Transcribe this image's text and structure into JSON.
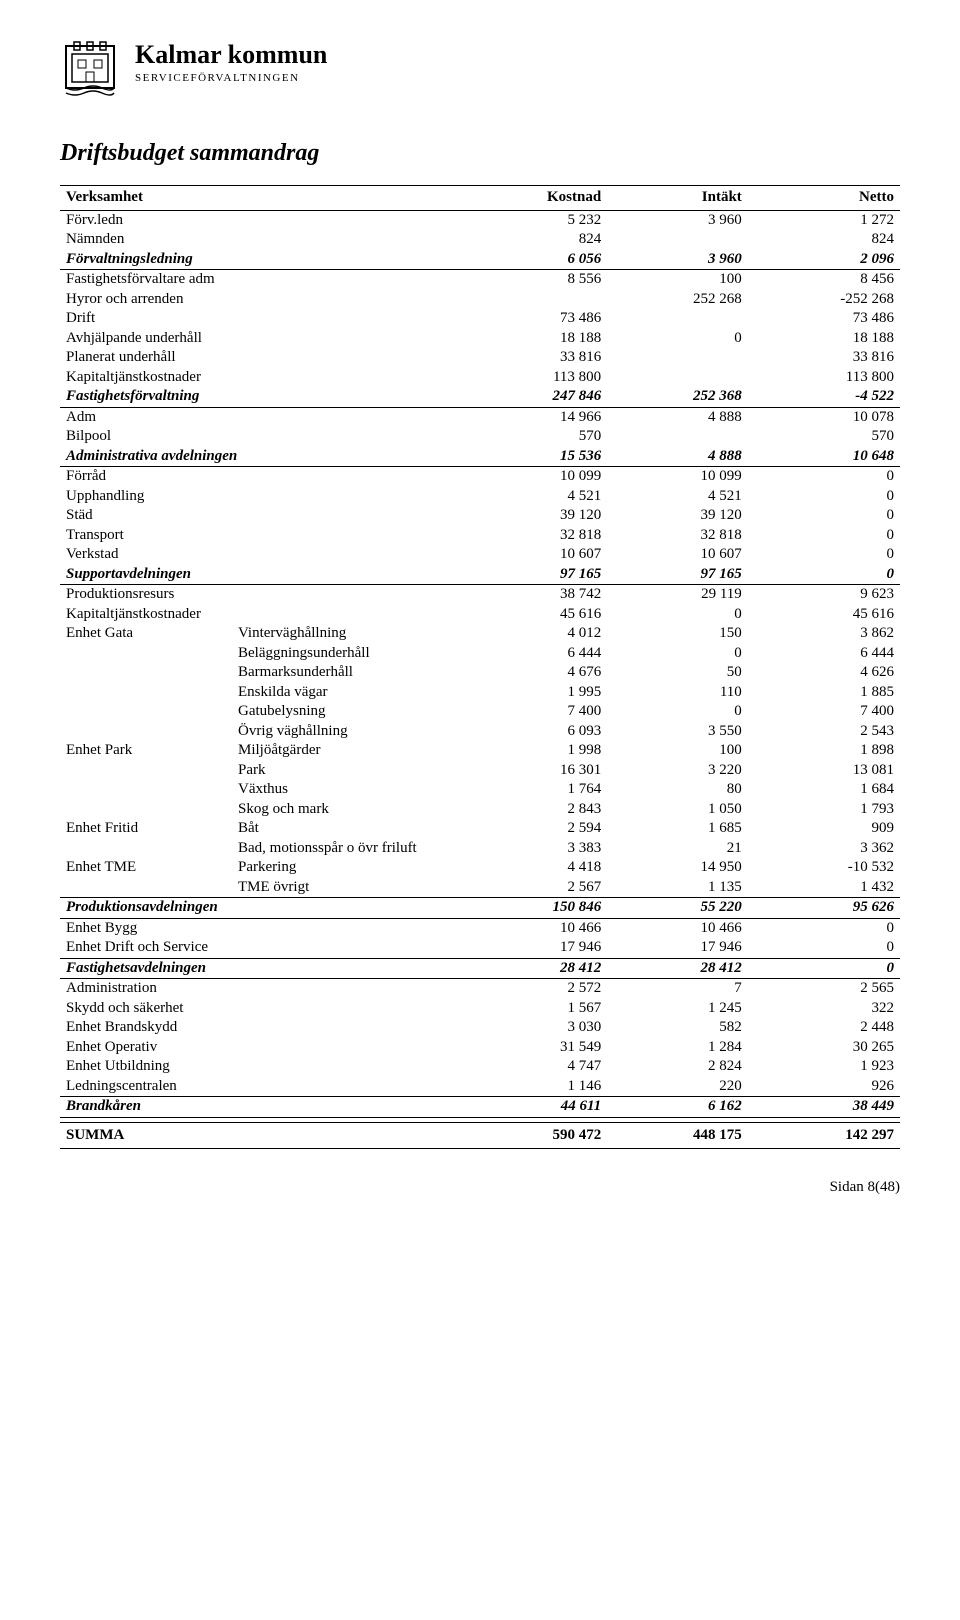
{
  "header": {
    "org": "Kalmar kommun",
    "sub": "SERVICEFÖRVALTNINGEN"
  },
  "title": "Driftsbudget sammandrag",
  "columns": [
    "Verksamhet",
    "Kostnad",
    "Intäkt",
    "Netto"
  ],
  "rows": [
    {
      "l1": "Förv.ledn",
      "l2": "",
      "c": "5 232",
      "i": "3 960",
      "n": "1 272"
    },
    {
      "l1": "Nämnden",
      "l2": "",
      "c": "824",
      "i": "",
      "n": "824"
    },
    {
      "l1": "Förvaltningsledning",
      "l2": "",
      "c": "6 056",
      "i": "3 960",
      "n": "2 096",
      "bi": true,
      "bot": true
    },
    {
      "l1": "Fastighetsförvaltare adm",
      "l2": "",
      "c": "8 556",
      "i": "100",
      "n": "8 456"
    },
    {
      "l1": "Hyror och arrenden",
      "l2": "",
      "c": "",
      "i": "252 268",
      "n": "-252 268"
    },
    {
      "l1": "Drift",
      "l2": "",
      "c": "73 486",
      "i": "",
      "n": "73 486"
    },
    {
      "l1": "Avhjälpande underhåll",
      "l2": "",
      "c": "18 188",
      "i": "0",
      "n": "18 188"
    },
    {
      "l1": "Planerat underhåll",
      "l2": "",
      "c": "33 816",
      "i": "",
      "n": "33 816"
    },
    {
      "l1": "Kapitaltjänstkostnader",
      "l2": "",
      "c": "113 800",
      "i": "",
      "n": "113 800"
    },
    {
      "l1": "Fastighetsförvaltning",
      "l2": "",
      "c": "247 846",
      "i": "252 368",
      "n": "-4 522",
      "bi": true,
      "bot": true
    },
    {
      "l1": "Adm",
      "l2": "",
      "c": "14 966",
      "i": "4 888",
      "n": "10 078"
    },
    {
      "l1": "Bilpool",
      "l2": "",
      "c": "570",
      "i": "",
      "n": "570"
    },
    {
      "l1": "Administrativa avdelningen",
      "l2": "",
      "c": "15 536",
      "i": "4 888",
      "n": "10 648",
      "bi": true,
      "bot": true
    },
    {
      "l1": "Förråd",
      "l2": "",
      "c": "10 099",
      "i": "10 099",
      "n": "0"
    },
    {
      "l1": "Upphandling",
      "l2": "",
      "c": "4 521",
      "i": "4 521",
      "n": "0"
    },
    {
      "l1": "Städ",
      "l2": "",
      "c": "39 120",
      "i": "39 120",
      "n": "0"
    },
    {
      "l1": "Transport",
      "l2": "",
      "c": "32 818",
      "i": "32 818",
      "n": "0"
    },
    {
      "l1": "Verkstad",
      "l2": "",
      "c": "10 607",
      "i": "10 607",
      "n": "0"
    },
    {
      "l1": "Supportavdelningen",
      "l2": "",
      "c": "97 165",
      "i": "97 165",
      "n": "0",
      "bi": true,
      "bot": true
    },
    {
      "l1": "Produktionsresurs",
      "l2": "",
      "c": "38 742",
      "i": "29 119",
      "n": "9 623"
    },
    {
      "l1": "Kapitaltjänstkostnader",
      "l2": "",
      "c": "45 616",
      "i": "0",
      "n": "45 616"
    },
    {
      "l1": "Enhet Gata",
      "l2": "Vinterväghållning",
      "c": "4 012",
      "i": "150",
      "n": "3 862"
    },
    {
      "l1": "",
      "l2": "Beläggningsunderhåll",
      "c": "6 444",
      "i": "0",
      "n": "6 444"
    },
    {
      "l1": "",
      "l2": "Barmarksunderhåll",
      "c": "4 676",
      "i": "50",
      "n": "4 626"
    },
    {
      "l1": "",
      "l2": "Enskilda vägar",
      "c": "1 995",
      "i": "110",
      "n": "1 885"
    },
    {
      "l1": "",
      "l2": "Gatubelysning",
      "c": "7 400",
      "i": "0",
      "n": "7 400"
    },
    {
      "l1": "",
      "l2": "Övrig väghållning",
      "c": "6 093",
      "i": "3 550",
      "n": "2 543"
    },
    {
      "l1": "Enhet Park",
      "l2": "Miljöåtgärder",
      "c": "1 998",
      "i": "100",
      "n": "1 898"
    },
    {
      "l1": "",
      "l2": "Park",
      "c": "16 301",
      "i": "3 220",
      "n": "13 081"
    },
    {
      "l1": "",
      "l2": "Växthus",
      "c": "1 764",
      "i": "80",
      "n": "1 684"
    },
    {
      "l1": "",
      "l2": "Skog och mark",
      "c": "2 843",
      "i": "1 050",
      "n": "1 793"
    },
    {
      "l1": "Enhet Fritid",
      "l2": "Båt",
      "c": "2 594",
      "i": "1 685",
      "n": "909"
    },
    {
      "l1": "",
      "l2": "Bad, motionsspår o övr friluft",
      "c": "3 383",
      "i": "21",
      "n": "3 362"
    },
    {
      "l1": "Enhet TME",
      "l2": "Parkering",
      "c": "4 418",
      "i": "14 950",
      "n": "-10 532"
    },
    {
      "l1": "",
      "l2": "TME övrigt",
      "c": "2 567",
      "i": "1 135",
      "n": "1 432"
    },
    {
      "l1": "Produktionsavdelningen",
      "l2": "",
      "c": "150 846",
      "i": "55 220",
      "n": "95 626",
      "bi": true,
      "top": true,
      "bot": true
    },
    {
      "l1": "Enhet Bygg",
      "l2": "",
      "c": "10 466",
      "i": "10 466",
      "n": "0"
    },
    {
      "l1": "Enhet Drift och Service",
      "l2": "",
      "c": "17 946",
      "i": "17 946",
      "n": "0"
    },
    {
      "l1": "Fastighetsavdelningen",
      "l2": "",
      "c": "28 412",
      "i": "28 412",
      "n": "0",
      "bi": true,
      "top": true,
      "bot": true
    },
    {
      "l1": "Administration",
      "l2": "",
      "c": "2 572",
      "i": "7",
      "n": "2 565"
    },
    {
      "l1": "Skydd och säkerhet",
      "l2": "",
      "c": "1 567",
      "i": "1 245",
      "n": "322"
    },
    {
      "l1": "Enhet Brandskydd",
      "l2": "",
      "c": "3 030",
      "i": "582",
      "n": "2 448"
    },
    {
      "l1": "Enhet Operativ",
      "l2": "",
      "c": "31 549",
      "i": "1 284",
      "n": "30 265"
    },
    {
      "l1": "Enhet Utbildning",
      "l2": "",
      "c": "4 747",
      "i": "2 824",
      "n": "1 923"
    },
    {
      "l1": "Ledningscentralen",
      "l2": "",
      "c": "1 146",
      "i": "220",
      "n": "926"
    },
    {
      "l1": "Brandkåren",
      "l2": "",
      "c": "44 611",
      "i": "6 162",
      "n": "38 449",
      "bi": true,
      "top": true,
      "bot": true
    }
  ],
  "summa": {
    "label": "SUMMA",
    "c": "590 472",
    "i": "448 175",
    "n": "142 297"
  },
  "footer": "Sidan 8(48)",
  "style": {
    "page_bg": "#ffffff",
    "text_color": "#000000",
    "border_color": "#000000"
  }
}
